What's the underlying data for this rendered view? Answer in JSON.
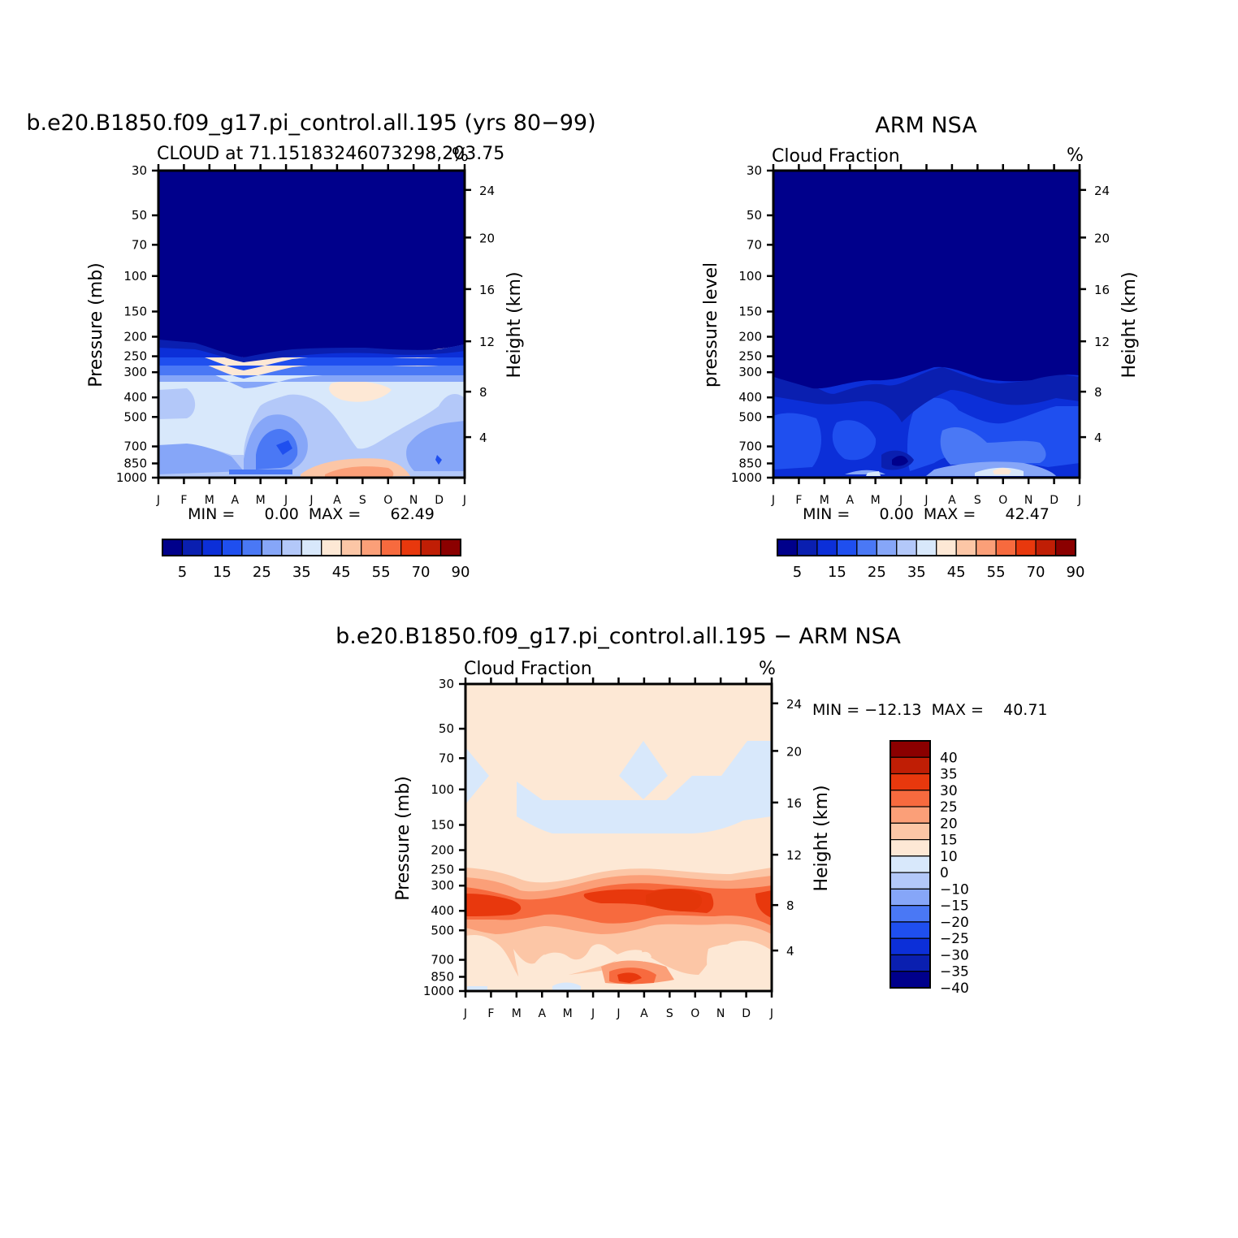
{
  "months": [
    "J",
    "F",
    "M",
    "A",
    "M",
    "J",
    "J",
    "A",
    "S",
    "O",
    "N",
    "D",
    "J"
  ],
  "pressure_ticks": [
    "30",
    "50",
    "70",
    "100",
    "150",
    "200",
    "250",
    "300",
    "400",
    "500",
    "700",
    "850",
    "1000"
  ],
  "height_ticks": [
    "24",
    "20",
    "16",
    "12",
    "8",
    "4"
  ],
  "panels": [
    {
      "id": "model",
      "title": "b.e20.B1850.f09_g17.pi_control.all.195 (yrs 80−99)",
      "left_label": "CLOUD at 71.15183246073298,203.75",
      "right_label": "%",
      "ylabel": "Pressure (mb)",
      "y2label": "Height (km)",
      "stats": "MIN =      0.00  MAX =      62.49"
    },
    {
      "id": "obs",
      "title": "ARM NSA",
      "left_label": "Cloud Fraction",
      "right_label": "%",
      "ylabel": "pressure level",
      "y2label": "Height (km)",
      "stats": "MIN =      0.00  MAX =      42.47"
    },
    {
      "id": "diff",
      "title": "b.e20.B1850.f09_g17.pi_control.all.195 − ARM NSA",
      "left_label": "Cloud Fraction",
      "right_label": "%",
      "ylabel": "Pressure (mb)",
      "y2label": "Height (km)",
      "stats": "MIN = −12.13  MAX =    40.71"
    }
  ],
  "colorbar_seq": {
    "colors": [
      "#00008b",
      "#0a1fb0",
      "#0c2fd8",
      "#1f4fef",
      "#4a78f5",
      "#86a6f8",
      "#b3c8f9",
      "#d8e8fb",
      "#fde8d5",
      "#fcc6a6",
      "#fb9f78",
      "#f76a3e",
      "#e8380d",
      "#c01e05",
      "#8b0000"
    ],
    "tick_labels": [
      "5",
      "15",
      "25",
      "35",
      "45",
      "55",
      "70",
      "90"
    ]
  },
  "colorbar_div": {
    "colors": [
      "#8b0000",
      "#c01e05",
      "#e8380d",
      "#f76a3e",
      "#fb9f78",
      "#fcc6a6",
      "#fde8d5",
      "#d8e8fb",
      "#b3c8f9",
      "#86a6f8",
      "#4a78f5",
      "#1f4fef",
      "#0c2fd8",
      "#0a1fb0",
      "#00008b"
    ],
    "tick_labels": [
      "40",
      "35",
      "30",
      "25",
      "20",
      "15",
      "10",
      "0",
      "−10",
      "−15",
      "−20",
      "−25",
      "−30",
      "−35",
      "−40"
    ]
  },
  "chart_data": [
    {
      "type": "heatmap",
      "title": "b.e20.B1850.f09_g17.pi_control.all.195 (yrs 80−99)",
      "variable": "CLOUD",
      "units": "%",
      "x": [
        "J",
        "F",
        "M",
        "A",
        "M",
        "J",
        "J",
        "A",
        "S",
        "O",
        "N",
        "D",
        "J"
      ],
      "y_pressure_mb": [
        1000,
        850,
        700,
        500,
        400,
        300,
        250,
        200,
        150,
        100,
        70,
        50,
        30
      ],
      "min": 0.0,
      "max": 62.49,
      "approx_values": [
        [
          20,
          25,
          22,
          15,
          18,
          25,
          45,
          55,
          50,
          45,
          30,
          25,
          20
        ],
        [
          28,
          30,
          30,
          22,
          12,
          10,
          35,
          40,
          40,
          35,
          28,
          20,
          28
        ],
        [
          28,
          30,
          30,
          30,
          16,
          12,
          28,
          36,
          36,
          32,
          28,
          22,
          28
        ],
        [
          36,
          36,
          32,
          30,
          24,
          24,
          30,
          36,
          38,
          36,
          32,
          30,
          36
        ],
        [
          36,
          32,
          30,
          30,
          28,
          30,
          36,
          45,
          42,
          36,
          34,
          30,
          32
        ],
        [
          20,
          20,
          18,
          16,
          18,
          20,
          22,
          22,
          20,
          20,
          20,
          18,
          20
        ],
        [
          12,
          12,
          10,
          8,
          10,
          12,
          14,
          14,
          12,
          12,
          12,
          10,
          12
        ],
        [
          5,
          4,
          4,
          2,
          2,
          3,
          3,
          3,
          3,
          2,
          2,
          3,
          5
        ],
        [
          0,
          0,
          0,
          0,
          0,
          0,
          0,
          0,
          0,
          0,
          0,
          0,
          0
        ],
        [
          0,
          0,
          0,
          0,
          0,
          0,
          0,
          0,
          0,
          0,
          0,
          0,
          0
        ],
        [
          0,
          0,
          0,
          0,
          0,
          0,
          0,
          0,
          0,
          0,
          0,
          0,
          0
        ],
        [
          0,
          0,
          0,
          0,
          0,
          0,
          0,
          0,
          0,
          0,
          0,
          0,
          0
        ],
        [
          0,
          0,
          0,
          0,
          0,
          0,
          0,
          0,
          0,
          0,
          0,
          0,
          0
        ]
      ]
    },
    {
      "type": "heatmap",
      "title": "ARM NSA",
      "variable": "Cloud Fraction",
      "units": "%",
      "x": [
        "J",
        "F",
        "M",
        "A",
        "M",
        "J",
        "J",
        "A",
        "S",
        "O",
        "N",
        "D",
        "J"
      ],
      "y_pressure_mb": [
        1000,
        850,
        700,
        500,
        400,
        300,
        250,
        200,
        150,
        100,
        70,
        50,
        30
      ],
      "min": 0.0,
      "max": 42.47,
      "approx_values": [
        [
          18,
          20,
          25,
          30,
          34,
          10,
          28,
          36,
          38,
          42,
          30,
          22,
          18
        ],
        [
          14,
          12,
          16,
          16,
          18,
          12,
          18,
          24,
          26,
          28,
          24,
          16,
          14
        ],
        [
          16,
          12,
          20,
          20,
          18,
          15,
          18,
          22,
          24,
          22,
          20,
          18,
          16
        ],
        [
          14,
          14,
          18,
          18,
          16,
          14,
          16,
          18,
          18,
          18,
          16,
          14,
          14
        ],
        [
          8,
          8,
          10,
          10,
          10,
          10,
          10,
          12,
          10,
          10,
          8,
          8,
          8
        ],
        [
          4,
          4,
          2,
          2,
          4,
          5,
          6,
          6,
          5,
          4,
          4,
          5,
          4
        ],
        [
          0,
          0,
          0,
          0,
          0,
          0,
          0,
          0,
          0,
          0,
          0,
          0,
          0
        ],
        [
          0,
          0,
          0,
          0,
          0,
          0,
          0,
          0,
          0,
          0,
          0,
          0,
          0
        ],
        [
          0,
          0,
          0,
          0,
          0,
          0,
          0,
          0,
          0,
          0,
          0,
          0,
          0
        ],
        [
          0,
          0,
          0,
          0,
          0,
          0,
          0,
          0,
          0,
          0,
          0,
          0,
          0
        ],
        [
          0,
          0,
          0,
          0,
          0,
          0,
          0,
          0,
          0,
          0,
          0,
          0,
          0
        ],
        [
          0,
          0,
          0,
          0,
          0,
          0,
          0,
          0,
          0,
          0,
          0,
          0,
          0
        ],
        [
          0,
          0,
          0,
          0,
          0,
          0,
          0,
          0,
          0,
          0,
          0,
          0,
          0
        ]
      ]
    },
    {
      "type": "heatmap",
      "title": "b.e20.B1850.f09_g17.pi_control.all.195 − ARM NSA",
      "variable": "Cloud Fraction",
      "units": "%",
      "x": [
        "J",
        "F",
        "M",
        "A",
        "M",
        "J",
        "J",
        "A",
        "S",
        "O",
        "N",
        "D",
        "J"
      ],
      "y_pressure_mb": [
        1000,
        850,
        700,
        500,
        400,
        300,
        250,
        200,
        150,
        100,
        70,
        50,
        30
      ],
      "min": -12.13,
      "max": 40.71,
      "approx_values": [
        [
          2,
          5,
          -3,
          -8,
          -10,
          2,
          25,
          20,
          15,
          5,
          2,
          3,
          2
        ],
        [
          14,
          18,
          14,
          6,
          -6,
          -2,
          17,
          16,
          14,
          7,
          4,
          4,
          14
        ],
        [
          12,
          18,
          10,
          10,
          -2,
          -3,
          10,
          14,
          12,
          10,
          8,
          4,
          12
        ],
        [
          22,
          22,
          14,
          12,
          8,
          10,
          14,
          18,
          20,
          18,
          16,
          16,
          22
        ],
        [
          28,
          26,
          20,
          20,
          18,
          20,
          26,
          33,
          32,
          26,
          26,
          22,
          24
        ],
        [
          16,
          16,
          16,
          14,
          14,
          15,
          16,
          16,
          15,
          16,
          16,
          13,
          16
        ],
        [
          12,
          12,
          10,
          8,
          10,
          12,
          14,
          14,
          12,
          12,
          12,
          10,
          12
        ],
        [
          5,
          4,
          4,
          2,
          2,
          3,
          3,
          3,
          3,
          2,
          2,
          3,
          5
        ],
        [
          0,
          0,
          0,
          0,
          0,
          0,
          0,
          0,
          0,
          0,
          0,
          0,
          0
        ],
        [
          0,
          0,
          -1,
          -1,
          -1,
          -1,
          -1,
          0,
          -1,
          -1,
          -1,
          -1,
          0
        ],
        [
          0,
          0,
          0,
          0,
          0,
          0,
          0,
          -1,
          0,
          0,
          0,
          -1,
          -1
        ],
        [
          0,
          0,
          0,
          0,
          0,
          0,
          0,
          0,
          0,
          0,
          0,
          -1,
          -1
        ],
        [
          0,
          0,
          0,
          0,
          0,
          0,
          0,
          0,
          0,
          0,
          0,
          0,
          0
        ]
      ]
    }
  ]
}
